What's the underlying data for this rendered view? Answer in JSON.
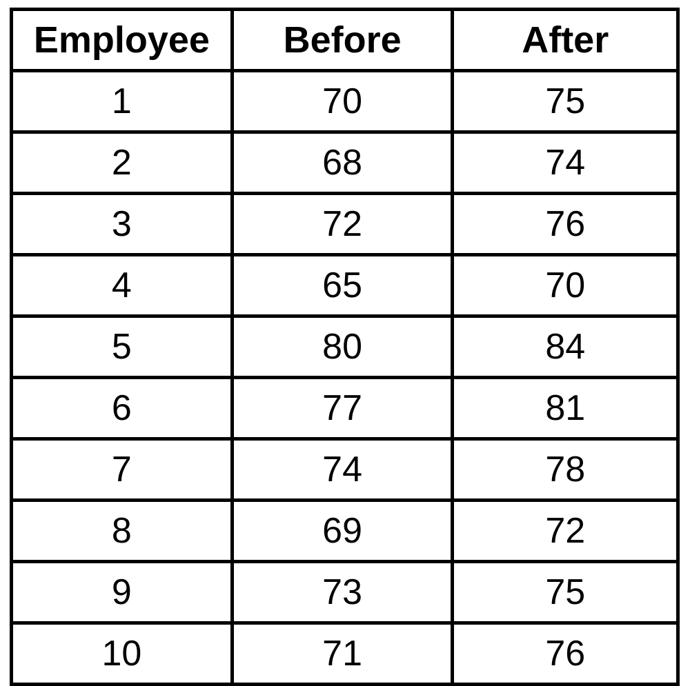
{
  "table": {
    "headers": [
      "Employee",
      "Before",
      "After"
    ],
    "rows": [
      [
        "1",
        "70",
        "75"
      ],
      [
        "2",
        "68",
        "74"
      ],
      [
        "3",
        "72",
        "76"
      ],
      [
        "4",
        "65",
        "70"
      ],
      [
        "5",
        "80",
        "84"
      ],
      [
        "6",
        "77",
        "81"
      ],
      [
        "7",
        "74",
        "78"
      ],
      [
        "8",
        "69",
        "72"
      ],
      [
        "9",
        "73",
        "75"
      ],
      [
        "10",
        "71",
        "76"
      ]
    ]
  }
}
